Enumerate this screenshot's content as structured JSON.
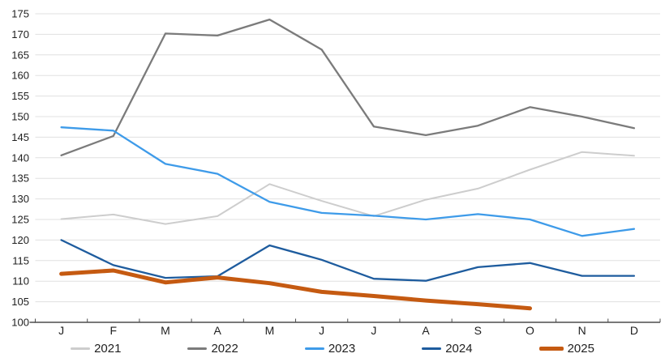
{
  "chart_data": {
    "type": "line",
    "title": "",
    "xlabel": "",
    "ylabel": "",
    "x_categories": [
      "J",
      "F",
      "M",
      "A",
      "M",
      "J",
      "J",
      "A",
      "S",
      "O",
      "N",
      "D"
    ],
    "y_axis": {
      "min": 100,
      "max": 175,
      "step": 5,
      "tick_labels": [
        "100",
        "105",
        "110",
        "115",
        "120",
        "125",
        "130",
        "135",
        "140",
        "145",
        "150",
        "155",
        "160",
        "165",
        "170",
        "175"
      ]
    },
    "grid": "horizontal",
    "legend_position": "bottom",
    "colors": {
      "gridline": "#E0E0E0",
      "axis": "#4D4D4D",
      "label_text": "#1F1F1F"
    },
    "series": [
      {
        "name": "2021",
        "color": "#CDCDCD",
        "stroke_width": 2,
        "values": [
          125.1,
          126.2,
          123.9,
          125.8,
          133.6,
          129.5,
          125.8,
          129.8,
          132.5,
          137.1,
          141.4,
          140.5
        ]
      },
      {
        "name": "2022",
        "color": "#7B7B7B",
        "stroke_width": 2.3,
        "values": [
          140.6,
          145.3,
          170.2,
          169.7,
          173.6,
          166.3,
          147.6,
          145.5,
          147.8,
          152.3,
          150.0,
          147.2
        ]
      },
      {
        "name": "2023",
        "color": "#3E9BE9",
        "stroke_width": 2.3,
        "values": [
          147.4,
          146.6,
          138.5,
          136.1,
          129.3,
          126.6,
          125.9,
          125.0,
          126.3,
          125.0,
          121.0,
          122.7
        ]
      },
      {
        "name": "2024",
        "color": "#1E5C9E",
        "stroke_width": 2.3,
        "values": [
          120.0,
          113.9,
          110.8,
          111.2,
          118.7,
          115.2,
          110.6,
          110.1,
          113.4,
          114.4,
          111.3,
          111.3
        ]
      },
      {
        "name": "2025",
        "color": "#C55A11",
        "stroke_width": 5,
        "values": [
          111.8,
          112.6,
          109.7,
          110.9,
          109.5,
          107.4,
          106.4,
          105.3,
          104.4,
          103.4
        ]
      }
    ]
  }
}
